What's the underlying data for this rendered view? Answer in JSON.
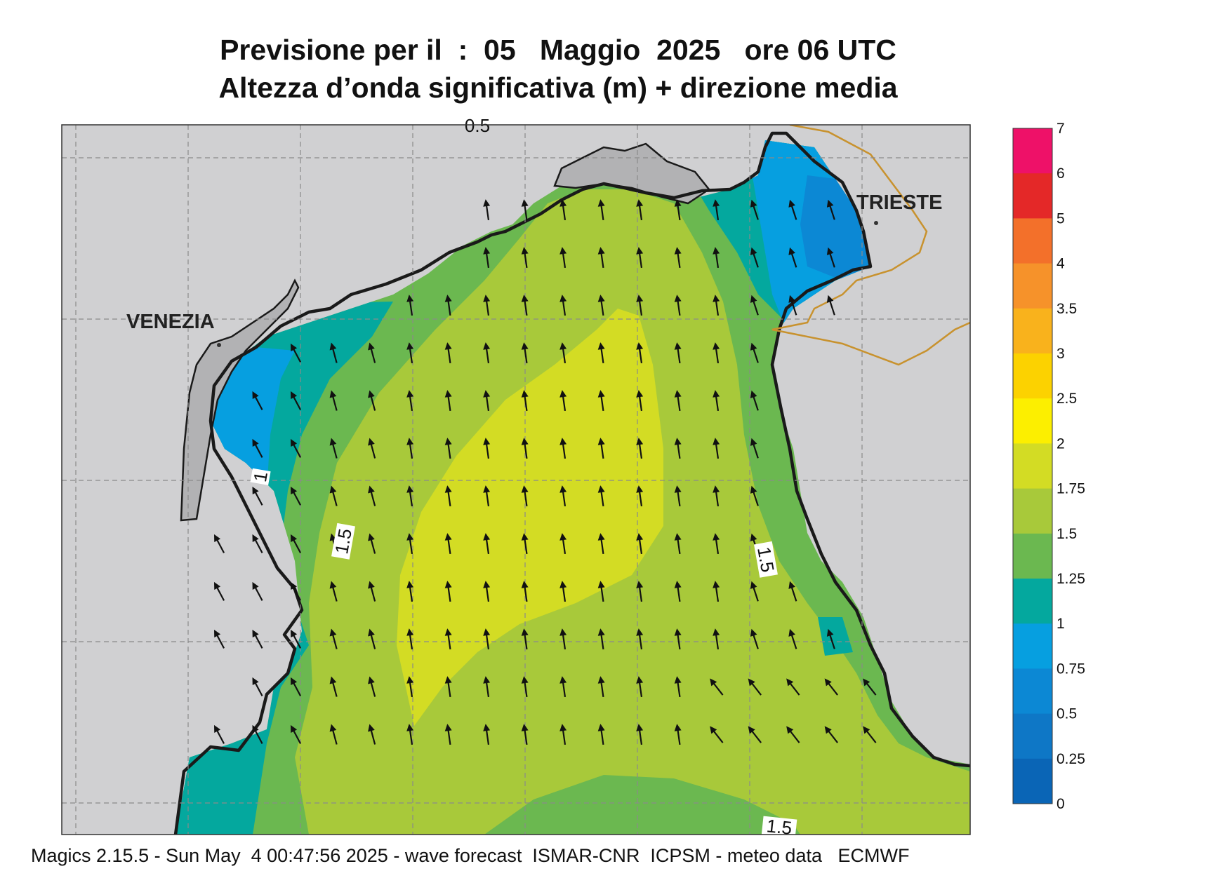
{
  "title_line1": "Previsione per il  :  05   Maggio  2025   ore 06 UTC",
  "title_line2": "Altezza d’onda significativa (m) + direzione media",
  "cities": {
    "venezia": "VENEZIA",
    "trieste": "TRIESTE"
  },
  "contour_labels": {
    "west": "1",
    "west_mid": "1.5",
    "east_mid": "1.5",
    "south": "1.5",
    "top_partial": "0.5"
  },
  "colorbar": {
    "labels": [
      "7",
      "6",
      "5",
      "4",
      "3.5",
      "3",
      "2.5",
      "2",
      "1.75",
      "1.5",
      "1.25",
      "1",
      "0.75",
      "0.5",
      "0.25",
      "0"
    ],
    "colors": [
      "#ee1168",
      "#e42828",
      "#f3702a",
      "#f6922a",
      "#f9b21c",
      "#fcd200",
      "#fcef00",
      "#d3dc24",
      "#a8c93a",
      "#6bb850",
      "#04a89e",
      "#069fe0",
      "#0c88d4",
      "#0e77c6",
      "#0a65b6"
    ]
  },
  "map_colors": {
    "land": "#d0d0d2",
    "lagoon": "#b2b2b4",
    "coast": "#1a1a1a",
    "border": "#c8922e",
    "arrow": "#111111"
  },
  "footer": "Magics 2.15.5 - Sun May  4 00:47:56 2025 - wave forecast  ISMAR-CNR  ICPSM - meteo data   ECMWF"
}
